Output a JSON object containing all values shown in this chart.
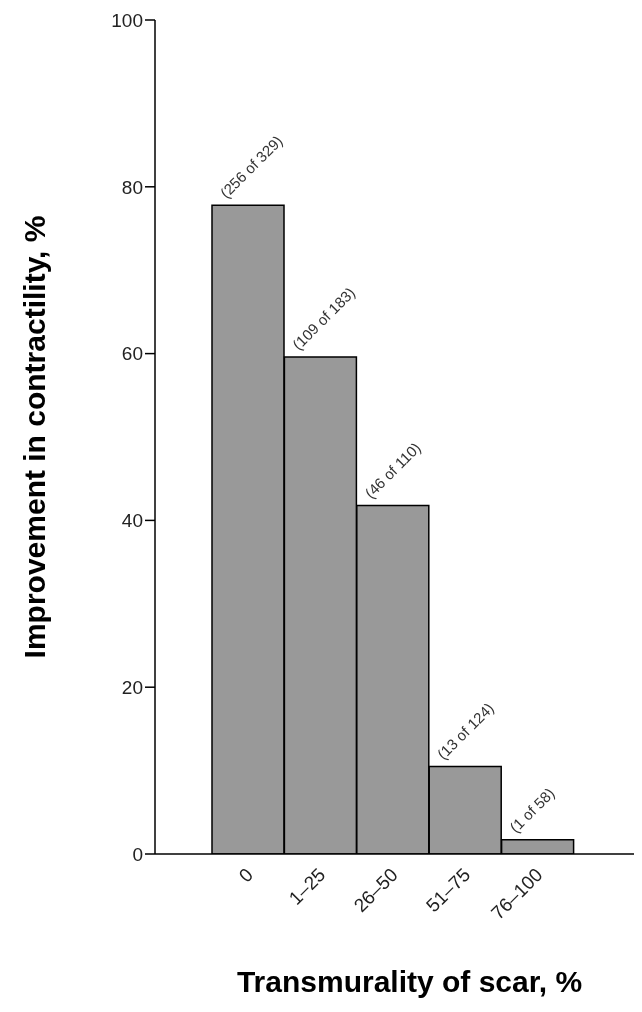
{
  "chart_data": {
    "type": "bar",
    "xlabel": "Transmurality of scar, %",
    "ylabel": "Improvement in contractility, %",
    "categories": [
      "0",
      "1–25",
      "26–50",
      "51–75",
      "76–100"
    ],
    "values": [
      77.8,
      59.6,
      41.8,
      10.5,
      1.7
    ],
    "value_labels": [
      "(256 of 329)",
      "(109 of 183)",
      "(46 of 110)",
      "(13 of 124)",
      "(1 of 58)"
    ],
    "color": "#999999",
    "ylim": [
      0,
      100
    ],
    "yticks": [
      0,
      20,
      40,
      60,
      80,
      100
    ],
    "grid": false,
    "legend": false
  }
}
